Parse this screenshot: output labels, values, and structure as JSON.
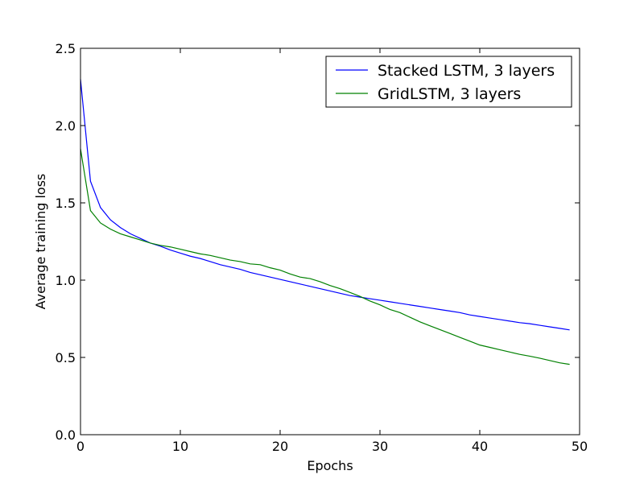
{
  "chart_data": {
    "type": "line",
    "title": "",
    "xlabel": "Epochs",
    "ylabel": "Average training loss",
    "xlim": [
      0,
      50
    ],
    "ylim": [
      0.0,
      2.5
    ],
    "xticks": [
      0,
      10,
      20,
      30,
      40,
      50
    ],
    "xtick_labels": [
      "0",
      "10",
      "20",
      "30",
      "40",
      "50"
    ],
    "yticks": [
      0.0,
      0.5,
      1.0,
      1.5,
      2.0,
      2.5
    ],
    "ytick_labels": [
      "0.0",
      "0.5",
      "1.0",
      "1.5",
      "2.0",
      "2.5"
    ],
    "grid": false,
    "legend_position": "top-right",
    "x": [
      0,
      1,
      2,
      3,
      4,
      5,
      6,
      7,
      8,
      9,
      10,
      11,
      12,
      13,
      14,
      15,
      16,
      17,
      18,
      19,
      20,
      21,
      22,
      23,
      24,
      25,
      26,
      27,
      28,
      29,
      30,
      31,
      32,
      33,
      34,
      35,
      36,
      37,
      38,
      39,
      40,
      41,
      42,
      43,
      44,
      45,
      46,
      47,
      48,
      49
    ],
    "series": [
      {
        "name": "Stacked LSTM, 3 layers",
        "color": "#0000ff",
        "values": [
          2.3,
          1.64,
          1.47,
          1.39,
          1.34,
          1.3,
          1.27,
          1.24,
          1.22,
          1.195,
          1.175,
          1.155,
          1.14,
          1.12,
          1.1,
          1.085,
          1.07,
          1.05,
          1.035,
          1.02,
          1.005,
          0.99,
          0.975,
          0.96,
          0.945,
          0.93,
          0.915,
          0.9,
          0.89,
          0.88,
          0.87,
          0.86,
          0.85,
          0.84,
          0.83,
          0.82,
          0.81,
          0.8,
          0.79,
          0.775,
          0.765,
          0.755,
          0.745,
          0.735,
          0.725,
          0.718,
          0.708,
          0.698,
          0.688,
          0.678
        ]
      },
      {
        "name": "GridLSTM, 3 layers",
        "color": "#008000",
        "values": [
          1.85,
          1.45,
          1.37,
          1.33,
          1.3,
          1.28,
          1.26,
          1.24,
          1.225,
          1.215,
          1.2,
          1.185,
          1.17,
          1.16,
          1.145,
          1.13,
          1.12,
          1.105,
          1.1,
          1.08,
          1.065,
          1.04,
          1.02,
          1.01,
          0.99,
          0.965,
          0.945,
          0.92,
          0.895,
          0.865,
          0.84,
          0.81,
          0.79,
          0.76,
          0.73,
          0.705,
          0.68,
          0.655,
          0.63,
          0.605,
          0.58,
          0.565,
          0.55,
          0.535,
          0.52,
          0.508,
          0.495,
          0.48,
          0.465,
          0.455
        ]
      }
    ]
  }
}
